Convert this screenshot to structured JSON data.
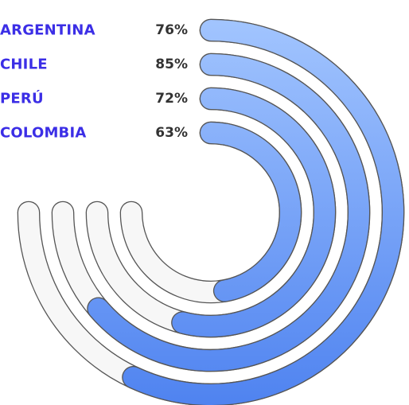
{
  "chart_data": {
    "type": "radial-bar",
    "categories": [
      "ARGENTINA",
      "CHILE",
      "PERÚ",
      "COLOMBIA"
    ],
    "values": [
      76,
      85,
      72,
      63
    ],
    "value_labels": [
      "76%",
      "85%",
      "72%",
      "63%"
    ],
    "max": 100,
    "title": "",
    "legend_position": "top-left",
    "colors": {
      "label": "#3b2ee6",
      "value_text": "#333333",
      "bar_gradient_start": "#a6c8ff",
      "bar_gradient_end": "#4f83f0",
      "track_fill": "#f7f7f7",
      "outline": "#555555"
    }
  }
}
